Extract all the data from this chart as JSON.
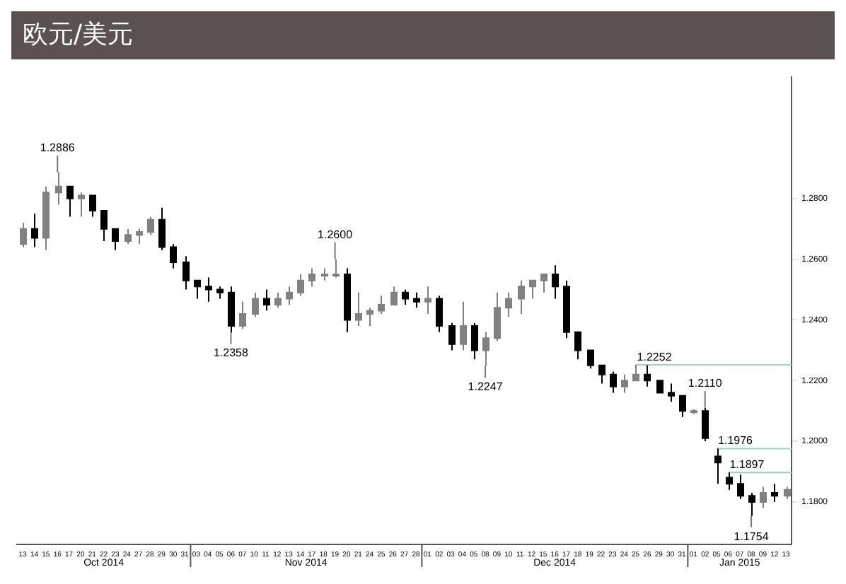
{
  "chart_data": {
    "type": "candlestick",
    "title": "欧元/美元",
    "categories": [
      "13",
      "14",
      "15",
      "16",
      "17",
      "20",
      "21",
      "22",
      "23",
      "24",
      "27",
      "28",
      "29",
      "30",
      "31",
      "03",
      "04",
      "05",
      "06",
      "07",
      "10",
      "11",
      "12",
      "13",
      "14",
      "17",
      "18",
      "19",
      "20",
      "21",
      "24",
      "25",
      "26",
      "27",
      "28",
      "01",
      "02",
      "03",
      "04",
      "05",
      "08",
      "09",
      "10",
      "11",
      "12",
      "15",
      "16",
      "17",
      "18",
      "19",
      "22",
      "23",
      "24",
      "25",
      "26",
      "29",
      "30",
      "31",
      "01",
      "02",
      "05",
      "06",
      "07",
      "08",
      "09",
      "12",
      "13"
    ],
    "ohlc": [
      [
        1.265,
        1.272,
        1.264,
        1.27
      ],
      [
        1.27,
        1.275,
        1.264,
        1.267
      ],
      [
        1.267,
        1.284,
        1.263,
        1.282
      ],
      [
        1.282,
        1.2886,
        1.278,
        1.284
      ],
      [
        1.284,
        1.284,
        1.274,
        1.28
      ],
      [
        1.28,
        1.282,
        1.274,
        1.281
      ],
      [
        1.281,
        1.281,
        1.274,
        1.276
      ],
      [
        1.276,
        1.276,
        1.266,
        1.27
      ],
      [
        1.27,
        1.27,
        1.263,
        1.266
      ],
      [
        1.266,
        1.27,
        1.265,
        1.268
      ],
      [
        1.268,
        1.27,
        1.265,
        1.269
      ],
      [
        1.269,
        1.274,
        1.268,
        1.273
      ],
      [
        1.273,
        1.277,
        1.263,
        1.264
      ],
      [
        1.264,
        1.265,
        1.257,
        1.259
      ],
      [
        1.259,
        1.261,
        1.25,
        1.253
      ],
      [
        1.253,
        1.253,
        1.247,
        1.251
      ],
      [
        1.251,
        1.254,
        1.246,
        1.25
      ],
      [
        1.25,
        1.251,
        1.247,
        1.249
      ],
      [
        1.249,
        1.251,
        1.2358,
        1.238
      ],
      [
        1.238,
        1.246,
        1.237,
        1.242
      ],
      [
        1.242,
        1.249,
        1.241,
        1.247
      ],
      [
        1.247,
        1.25,
        1.243,
        1.245
      ],
      [
        1.245,
        1.249,
        1.244,
        1.247
      ],
      [
        1.247,
        1.251,
        1.245,
        1.249
      ],
      [
        1.249,
        1.255,
        1.248,
        1.253
      ],
      [
        1.253,
        1.257,
        1.251,
        1.255
      ],
      [
        1.255,
        1.257,
        1.253,
        1.255
      ],
      [
        1.255,
        1.26,
        1.254,
        1.255
      ],
      [
        1.255,
        1.257,
        1.236,
        1.24
      ],
      [
        1.24,
        1.249,
        1.238,
        1.242
      ],
      [
        1.242,
        1.244,
        1.238,
        1.243
      ],
      [
        1.243,
        1.248,
        1.242,
        1.245
      ],
      [
        1.245,
        1.251,
        1.245,
        1.249
      ],
      [
        1.249,
        1.25,
        1.245,
        1.247
      ],
      [
        1.247,
        1.249,
        1.244,
        1.246
      ],
      [
        1.246,
        1.251,
        1.242,
        1.247
      ],
      [
        1.247,
        1.248,
        1.236,
        1.238
      ],
      [
        1.238,
        1.239,
        1.23,
        1.232
      ],
      [
        1.232,
        1.246,
        1.23,
        1.238
      ],
      [
        1.238,
        1.239,
        1.227,
        1.23
      ],
      [
        1.23,
        1.236,
        1.2247,
        1.234
      ],
      [
        1.234,
        1.249,
        1.233,
        1.244
      ],
      [
        1.244,
        1.249,
        1.241,
        1.247
      ],
      [
        1.247,
        1.253,
        1.242,
        1.251
      ],
      [
        1.251,
        1.253,
        1.247,
        1.253
      ],
      [
        1.253,
        1.255,
        1.249,
        1.255
      ],
      [
        1.255,
        1.258,
        1.247,
        1.251
      ],
      [
        1.251,
        1.253,
        1.234,
        1.236
      ],
      [
        1.236,
        1.236,
        1.227,
        1.23
      ],
      [
        1.23,
        1.23,
        1.224,
        1.225
      ],
      [
        1.225,
        1.225,
        1.219,
        1.222
      ],
      [
        1.222,
        1.223,
        1.216,
        1.218
      ],
      [
        1.218,
        1.222,
        1.216,
        1.22
      ],
      [
        1.22,
        1.2252,
        1.22,
        1.222
      ],
      [
        1.222,
        1.225,
        1.218,
        1.22
      ],
      [
        1.22,
        1.22,
        1.216,
        1.216
      ],
      [
        1.216,
        1.219,
        1.213,
        1.215
      ],
      [
        1.215,
        1.215,
        1.208,
        1.21
      ],
      [
        1.21,
        1.2105,
        1.209,
        1.21
      ],
      [
        1.21,
        1.211,
        1.2,
        1.201
      ],
      [
        1.195,
        1.1976,
        1.186,
        1.193
      ],
      [
        1.188,
        1.1897,
        1.184,
        1.186
      ],
      [
        1.186,
        1.189,
        1.181,
        1.182
      ],
      [
        1.182,
        1.183,
        1.1754,
        1.18
      ],
      [
        1.18,
        1.185,
        1.178,
        1.183
      ],
      [
        1.183,
        1.186,
        1.18,
        1.182
      ],
      [
        1.182,
        1.185,
        1.181,
        1.184
      ]
    ],
    "colors": [
      "#808080",
      "#000000",
      "#808080",
      "#808080",
      "#000000",
      "#808080",
      "#000000",
      "#000000",
      "#000000",
      "#808080",
      "#808080",
      "#808080",
      "#000000",
      "#000000",
      "#000000",
      "#000000",
      "#000000",
      "#000000",
      "#000000",
      "#808080",
      "#808080",
      "#000000",
      "#808080",
      "#808080",
      "#808080",
      "#808080",
      "#808080",
      "#808080",
      "#000000",
      "#808080",
      "#808080",
      "#808080",
      "#808080",
      "#000000",
      "#000000",
      "#808080",
      "#000000",
      "#000000",
      "#808080",
      "#000000",
      "#808080",
      "#808080",
      "#808080",
      "#808080",
      "#808080",
      "#808080",
      "#000000",
      "#000000",
      "#000000",
      "#000000",
      "#000000",
      "#000000",
      "#808080",
      "#808080",
      "#000000",
      "#000000",
      "#000000",
      "#000000",
      "#808080",
      "#000000",
      "#000000",
      "#000000",
      "#000000",
      "#000000",
      "#808080",
      "#000000",
      "#808080"
    ],
    "ylim": [
      1.166,
      1.32
    ],
    "yticks": [
      {
        "value": 1.18,
        "label": "1.1800"
      },
      {
        "value": 1.2,
        "label": "1.2000"
      },
      {
        "value": 1.22,
        "label": "1.2200"
      },
      {
        "value": 1.24,
        "label": "1.2400"
      },
      {
        "value": 1.26,
        "label": "1.2600"
      },
      {
        "value": 1.28,
        "label": "1.2800"
      }
    ],
    "ref_lines": [
      {
        "axis": "y",
        "value": 1.2252,
        "label": "1.2252",
        "color": "#9fd3bd"
      },
      {
        "axis": "y",
        "value": 1.1976,
        "label": "1.1976",
        "color": "#9fd3bd"
      },
      {
        "axis": "y",
        "value": 1.1897,
        "label": "1.1897",
        "color": "#9fd3bd"
      }
    ],
    "annotations": [
      {
        "text": "1.2886",
        "y": 1.2886
      },
      {
        "text": "1.2600",
        "y": 1.26
      },
      {
        "text": "1.2358",
        "y": 1.2358
      },
      {
        "text": "1.2247",
        "y": 1.2247
      },
      {
        "text": "1.2110",
        "y": 1.211
      },
      {
        "text": "1.1754",
        "y": 1.1754
      },
      "Oct 2014",
      "Nov 2014",
      "Dec 2014",
      "Jan 2015"
    ],
    "grid": false,
    "legend": false
  }
}
